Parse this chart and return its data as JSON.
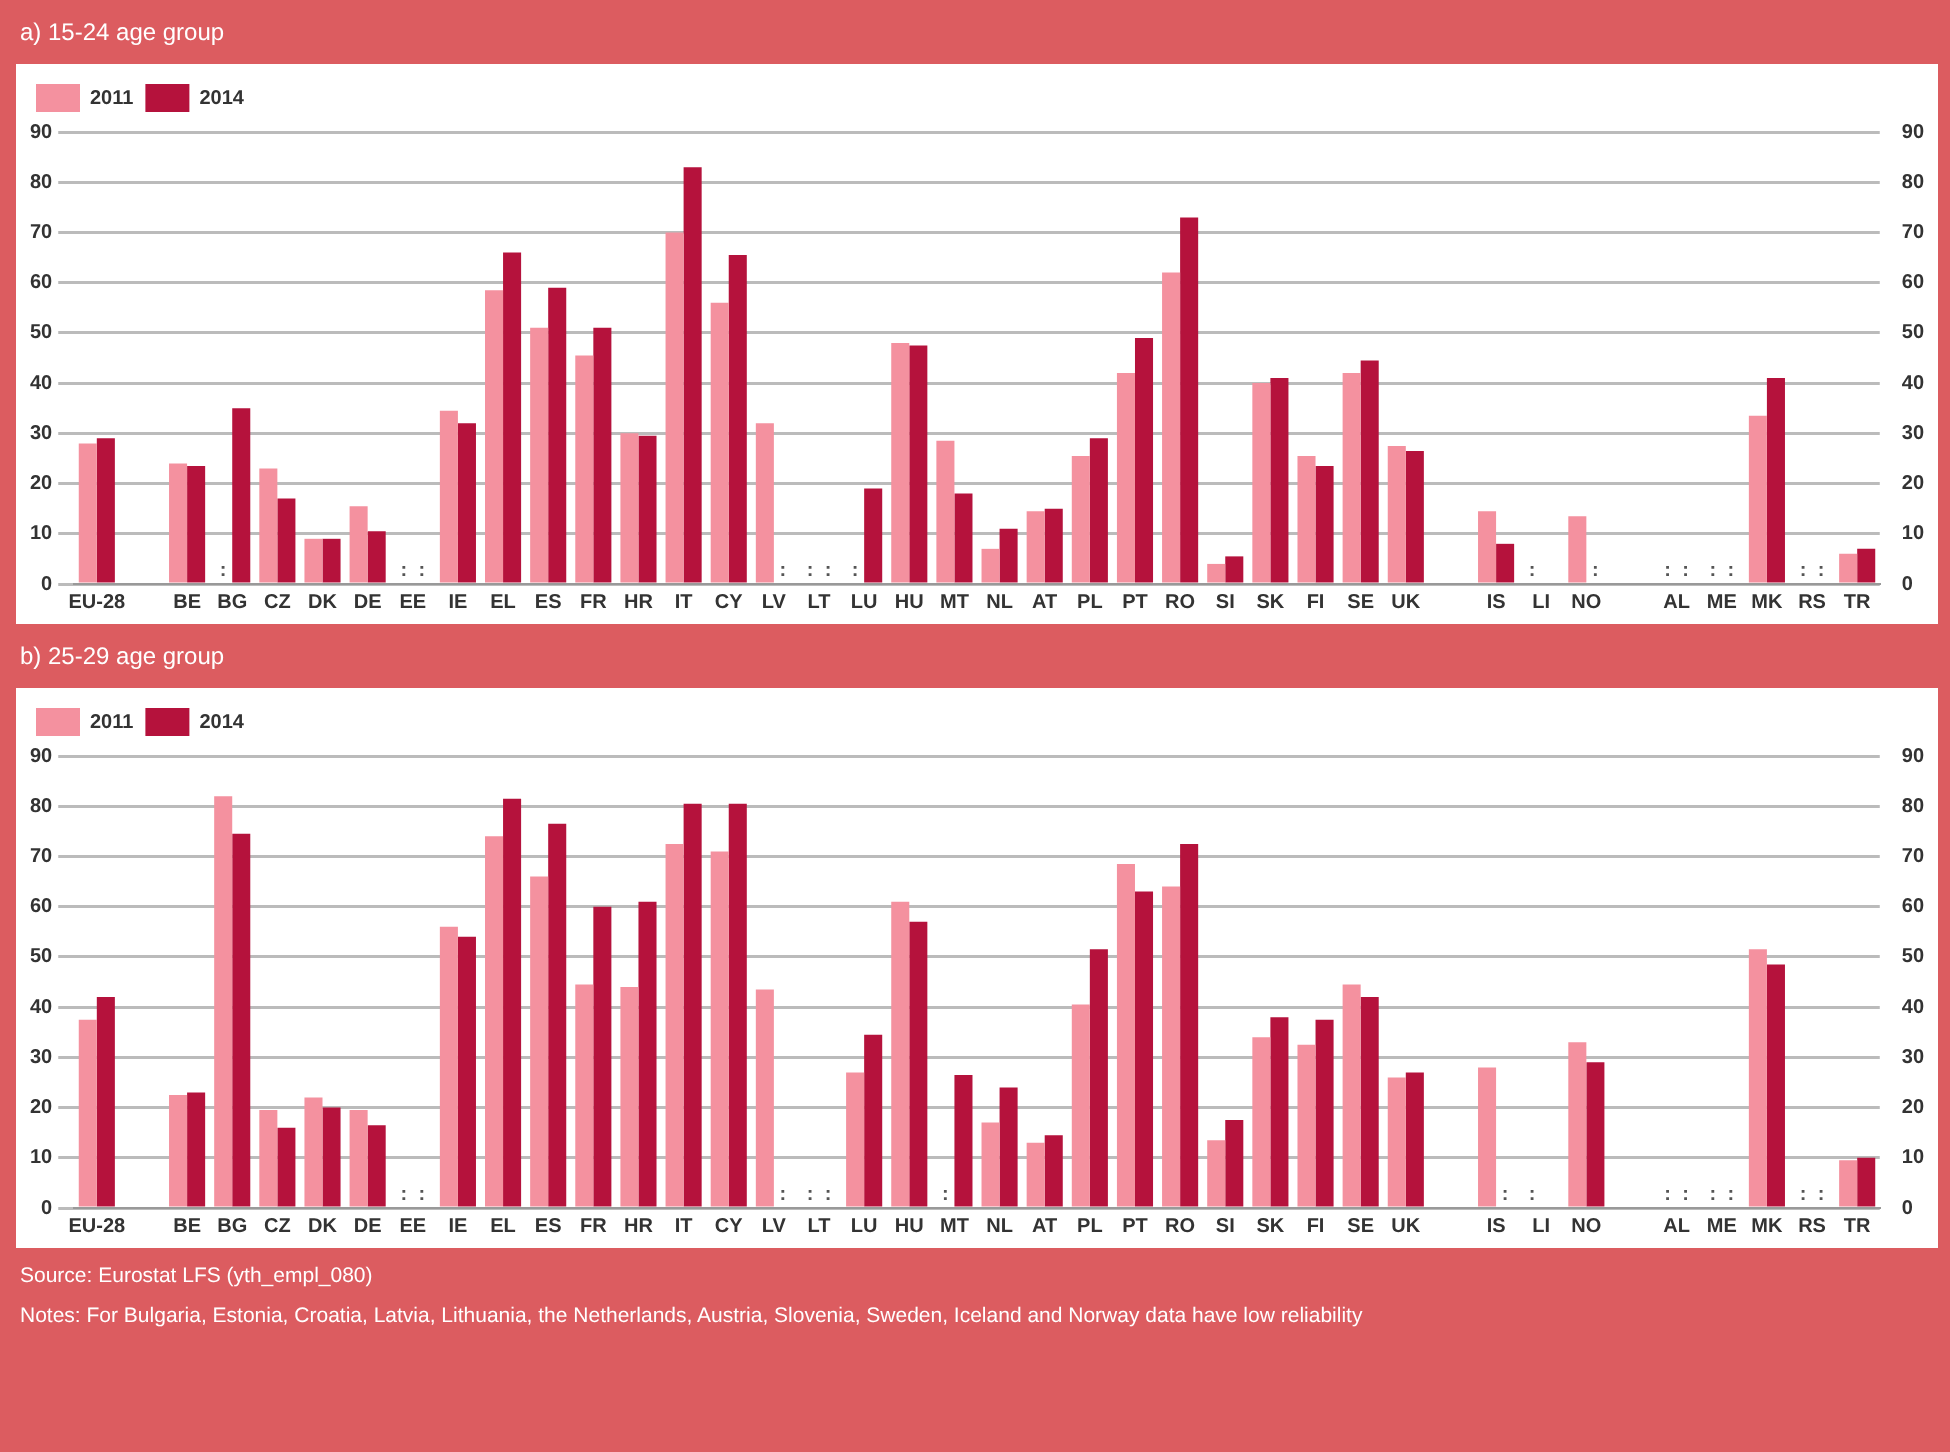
{
  "chart_data": [
    {
      "type": "bar",
      "title": "a) 15-24 age group",
      "categories": [
        "EU-28",
        null,
        "BE",
        "BG",
        "CZ",
        "DK",
        "DE",
        "EE",
        "IE",
        "EL",
        "ES",
        "FR",
        "HR",
        "IT",
        "CY",
        "LV",
        "LT",
        "LU",
        "HU",
        "MT",
        "NL",
        "AT",
        "PL",
        "PT",
        "RO",
        "SI",
        "SK",
        "FI",
        "SE",
        "UK",
        null,
        "IS",
        "LI",
        "NO",
        null,
        "AL",
        "ME",
        "MK",
        "RS",
        "TR"
      ],
      "series": [
        {
          "name": "2011",
          "color": "#f4919f",
          "values": [
            28,
            null,
            24,
            null,
            23,
            9,
            15.5,
            null,
            34.5,
            58.5,
            51,
            45.5,
            30,
            70,
            56,
            32,
            null,
            null,
            48,
            28.5,
            7,
            14.5,
            25.5,
            42,
            62,
            4,
            40,
            25.5,
            42,
            27.5,
            null,
            14.5,
            null,
            13.5,
            null,
            null,
            null,
            33.5,
            null,
            6
          ],
          "value_labels": [
            null,
            null,
            null,
            ":",
            null,
            null,
            null,
            ":",
            null,
            null,
            null,
            null,
            null,
            null,
            null,
            null,
            ":",
            ":",
            null,
            null,
            null,
            null,
            null,
            null,
            null,
            null,
            null,
            null,
            null,
            null,
            null,
            null,
            ":",
            null,
            null,
            ":",
            ":",
            null,
            ":",
            null
          ]
        },
        {
          "name": "2014",
          "color": "#b5123c",
          "values": [
            29,
            null,
            23.5,
            35,
            17,
            9,
            10.5,
            null,
            32,
            66,
            59,
            51,
            29.5,
            83,
            65.5,
            null,
            null,
            19,
            47.5,
            18,
            11,
            15,
            29,
            49,
            73,
            5.5,
            41,
            23.5,
            44.5,
            26.5,
            null,
            8,
            null,
            null,
            null,
            null,
            null,
            41,
            null,
            7
          ],
          "value_labels": [
            null,
            null,
            null,
            null,
            null,
            null,
            null,
            ":",
            null,
            null,
            null,
            null,
            null,
            null,
            null,
            ":",
            ":",
            null,
            null,
            null,
            null,
            null,
            null,
            null,
            null,
            null,
            null,
            null,
            null,
            null,
            null,
            null,
            null,
            ":",
            null,
            ":",
            ":",
            null,
            ":",
            null
          ]
        }
      ],
      "ylim": [
        0,
        90
      ],
      "yticks": [
        0,
        10,
        20,
        30,
        40,
        50,
        60,
        70,
        80,
        90
      ],
      "y2lim": [
        0,
        90
      ],
      "y2ticks": [
        0,
        10,
        20,
        30,
        40,
        50,
        60,
        70,
        80,
        90
      ],
      "grid": "y",
      "legend": "top left"
    },
    {
      "type": "bar",
      "title": "b) 25-29 age group",
      "categories": [
        "EU-28",
        null,
        "BE",
        "BG",
        "CZ",
        "DK",
        "DE",
        "EE",
        "IE",
        "EL",
        "ES",
        "FR",
        "HR",
        "IT",
        "CY",
        "LV",
        "LT",
        "LU",
        "HU",
        "MT",
        "NL",
        "AT",
        "PL",
        "PT",
        "RO",
        "SI",
        "SK",
        "FI",
        "SE",
        "UK",
        null,
        "IS",
        "LI",
        "NO",
        null,
        "AL",
        "ME",
        "MK",
        "RS",
        "TR"
      ],
      "series": [
        {
          "name": "2011",
          "color": "#f4919f",
          "values": [
            37.5,
            null,
            22.5,
            82,
            19.5,
            22,
            19.5,
            null,
            56,
            74,
            66,
            44.5,
            44,
            72.5,
            71,
            43.5,
            null,
            27,
            61,
            null,
            17,
            13,
            40.5,
            68.5,
            64,
            13.5,
            34,
            32.5,
            44.5,
            26,
            null,
            28,
            null,
            33,
            null,
            null,
            null,
            51.5,
            null,
            9.5
          ],
          "value_labels": [
            null,
            null,
            null,
            null,
            null,
            null,
            null,
            ":",
            null,
            null,
            null,
            null,
            null,
            null,
            null,
            null,
            ":",
            null,
            null,
            ":",
            null,
            null,
            null,
            null,
            null,
            null,
            null,
            null,
            null,
            null,
            null,
            null,
            ":",
            null,
            null,
            ":",
            ":",
            null,
            ":",
            null
          ]
        },
        {
          "name": "2014",
          "color": "#b5123c",
          "values": [
            42,
            null,
            23,
            74.5,
            16,
            20,
            16.5,
            null,
            54,
            81.5,
            76.5,
            60,
            61,
            80.5,
            80.5,
            null,
            null,
            34.5,
            57,
            26.5,
            24,
            14.5,
            51.5,
            63,
            72.5,
            17.5,
            38,
            37.5,
            42,
            27,
            null,
            null,
            null,
            29,
            null,
            null,
            null,
            48.5,
            null,
            10
          ],
          "value_labels": [
            null,
            null,
            null,
            null,
            null,
            null,
            null,
            ":",
            null,
            null,
            null,
            null,
            null,
            null,
            null,
            ":",
            ":",
            null,
            null,
            null,
            null,
            null,
            null,
            null,
            null,
            null,
            null,
            null,
            null,
            null,
            null,
            ":",
            null,
            null,
            null,
            ":",
            ":",
            null,
            ":",
            null
          ]
        }
      ],
      "ylim": [
        0,
        90
      ],
      "yticks": [
        0,
        10,
        20,
        30,
        40,
        50,
        60,
        70,
        80,
        90
      ],
      "y2lim": [
        0,
        90
      ],
      "y2ticks": [
        0,
        10,
        20,
        30,
        40,
        50,
        60,
        70,
        80,
        90
      ],
      "grid": "y",
      "legend": "top left",
      "annotations": [
        "Source: Eurostat LFS (yth_empl_080)",
        "Notes: For Bulgaria, Estonia, Croatia, Latvia, Lithuania, the Netherlands, Austria, Slovenia, Sweden, Iceland and Norway data have low reliability"
      ]
    }
  ]
}
